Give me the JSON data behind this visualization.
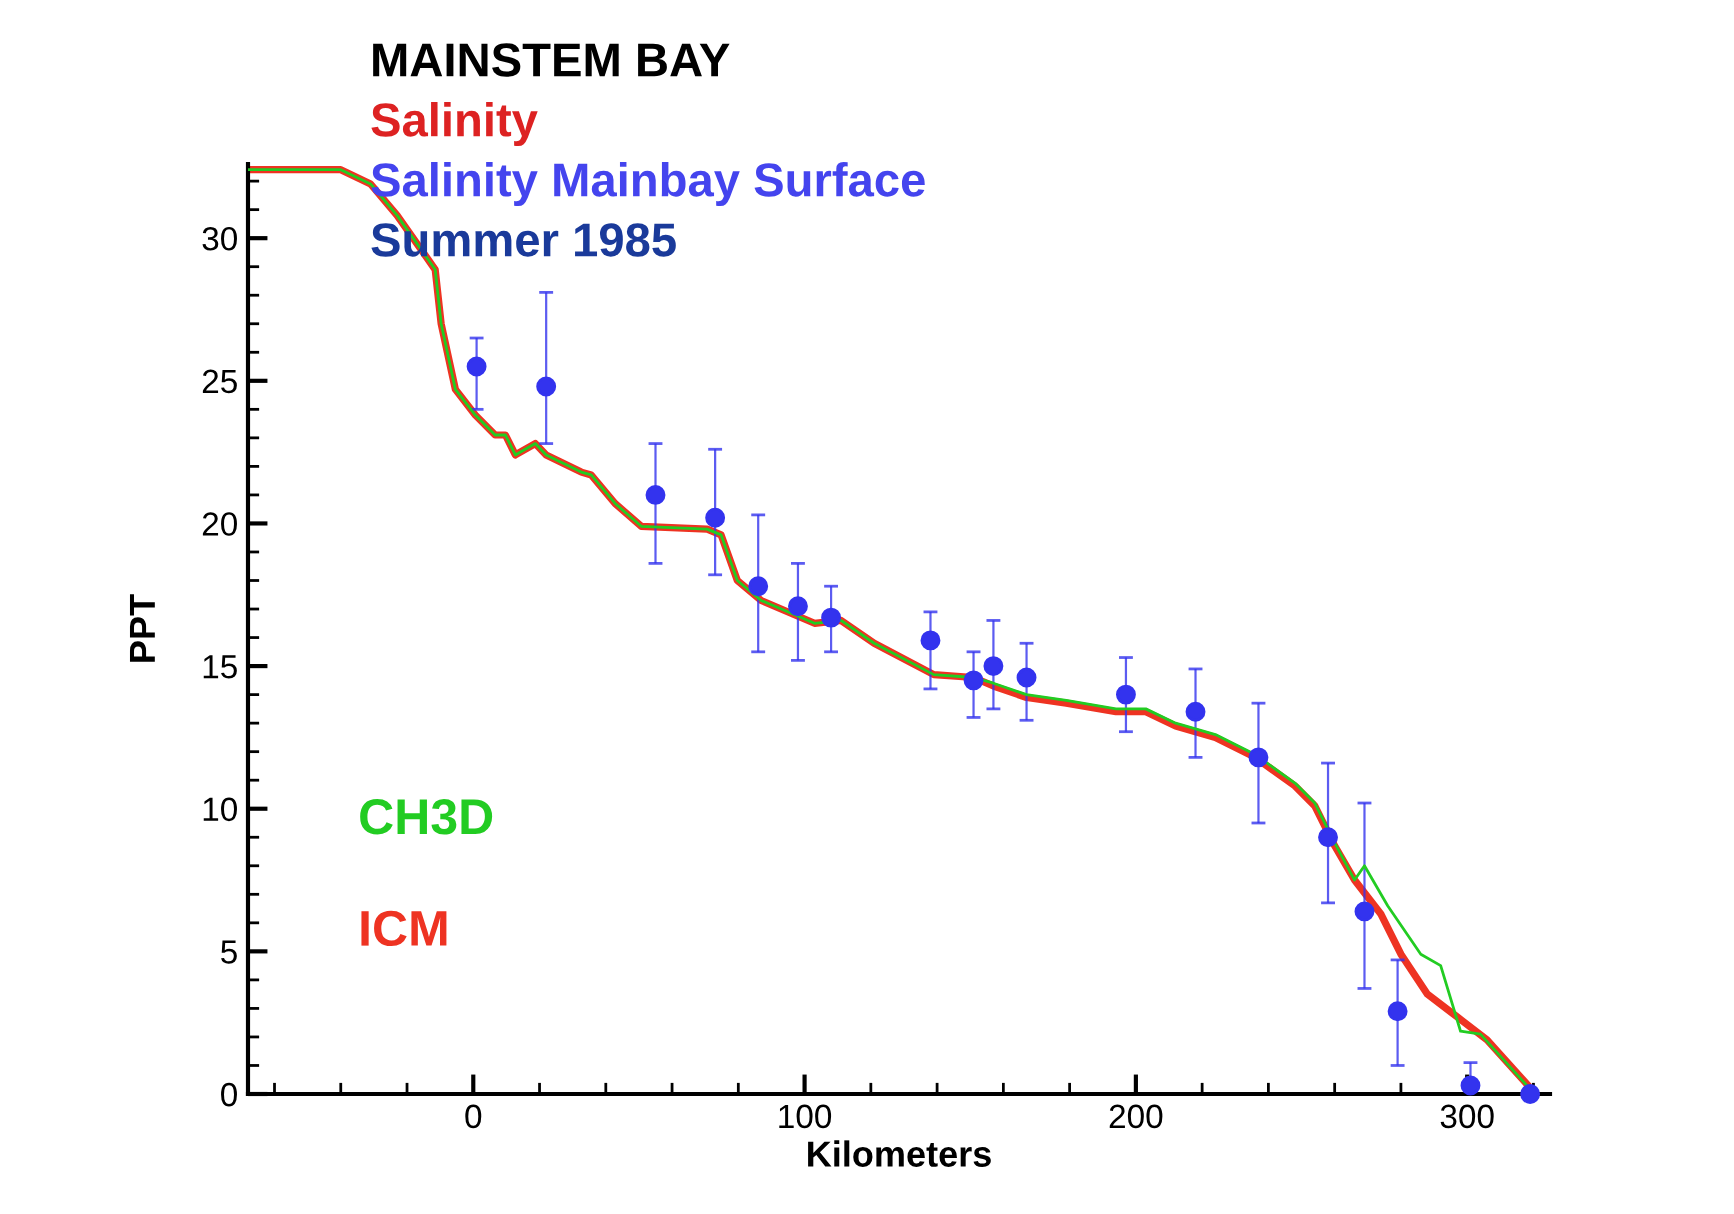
{
  "chart_data": {
    "type": "line",
    "title": "MAINSTEM BAY",
    "subtitle": "Salinity",
    "annotations": [
      "Salinity Mainbay Surface",
      "Summer 1985"
    ],
    "xlabel": "Kilometers",
    "ylabel": "PPT",
    "xlim": [
      -68,
      325
    ],
    "ylim": [
      0,
      32.6
    ],
    "xticks": [
      0,
      100,
      200,
      300
    ],
    "yticks": [
      0,
      5,
      10,
      15,
      20,
      25,
      30
    ],
    "grid": false,
    "legend": "bottom left",
    "series": [
      {
        "name": "CH3D",
        "color": "#22cc22",
        "line_style": "solid",
        "marker": "none",
        "x": [
          -68,
          -40,
          -31,
          -23,
          -11.5,
          -9.7,
          -5.4,
          0.6,
          6.6,
          9.7,
          12.7,
          18.7,
          22,
          32.6,
          35.6,
          42.8,
          50.7,
          70.6,
          74.8,
          79.7,
          86.9,
          103,
          111,
          121,
          139,
          151,
          157,
          167,
          179,
          194,
          203,
          212,
          224,
          236,
          248,
          254,
          260,
          266,
          269,
          276,
          286,
          292,
          298,
          304,
          318
        ],
        "values": [
          32.4,
          32.4,
          31.9,
          30.8,
          28.9,
          27.0,
          24.7,
          23.8,
          23.1,
          23.1,
          22.4,
          22.8,
          22.4,
          21.8,
          21.7,
          20.7,
          19.9,
          19.8,
          19.6,
          18.0,
          17.3,
          16.5,
          16.6,
          15.8,
          14.7,
          14.6,
          14.4,
          14.0,
          13.8,
          13.5,
          13.5,
          13.0,
          12.6,
          11.9,
          10.9,
          10.2,
          8.8,
          7.5,
          8.0,
          6.6,
          4.9,
          4.5,
          2.2,
          2.1,
          0.3
        ]
      },
      {
        "name": "ICM",
        "color": "#ee3322",
        "line_style": "solid",
        "marker": "none",
        "x": [
          -68,
          -40,
          -31,
          -23,
          -11.5,
          -9.7,
          -5.4,
          0.6,
          6.6,
          9.7,
          12.7,
          18.7,
          22,
          32.6,
          35.6,
          42.8,
          50.7,
          70.6,
          74.8,
          79.7,
          86.9,
          103,
          111,
          121,
          139,
          151,
          157,
          167,
          179,
          194,
          203,
          212,
          224,
          236,
          248,
          254,
          260,
          266,
          274,
          280,
          288,
          297,
          306,
          318
        ],
        "values": [
          32.4,
          32.4,
          31.9,
          30.8,
          28.9,
          27.0,
          24.7,
          23.8,
          23.1,
          23.1,
          22.4,
          22.8,
          22.4,
          21.8,
          21.7,
          20.7,
          19.9,
          19.8,
          19.6,
          18.0,
          17.3,
          16.5,
          16.6,
          15.8,
          14.7,
          14.6,
          14.3,
          13.9,
          13.7,
          13.4,
          13.4,
          12.9,
          12.5,
          11.8,
          10.8,
          10.1,
          8.7,
          7.5,
          6.3,
          4.9,
          3.5,
          2.7,
          1.9,
          0.35
        ]
      },
      {
        "color": "#3333ee",
        "type": "scatter",
        "marker": "circle",
        "x": [
          1,
          22,
          55,
          73,
          86,
          98,
          108,
          138,
          151,
          157,
          167,
          197,
          218,
          237,
          258,
          269,
          279,
          301,
          319
        ],
        "values": [
          25.5,
          24.8,
          21.0,
          20.2,
          17.8,
          17.1,
          16.7,
          15.9,
          14.5,
          15.0,
          14.6,
          14.0,
          13.4,
          11.8,
          9.0,
          6.4,
          2.9,
          0.3,
          0
        ],
        "errors": [
          [
            24.0,
            26.5
          ],
          [
            22.8,
            28.1
          ],
          [
            18.6,
            22.8
          ],
          [
            18.2,
            22.6
          ],
          [
            15.5,
            20.3
          ],
          [
            15.2,
            18.6
          ],
          [
            15.5,
            17.8
          ],
          [
            14.2,
            16.9
          ],
          [
            13.2,
            15.5
          ],
          [
            13.5,
            16.6
          ],
          [
            13.1,
            15.8
          ],
          [
            12.7,
            15.3
          ],
          [
            11.8,
            14.9
          ],
          [
            9.5,
            13.7
          ],
          [
            6.7,
            11.6
          ],
          [
            3.7,
            10.2
          ],
          [
            1.0,
            4.7
          ],
          [
            0,
            1.1
          ],
          null
        ]
      }
    ]
  }
}
